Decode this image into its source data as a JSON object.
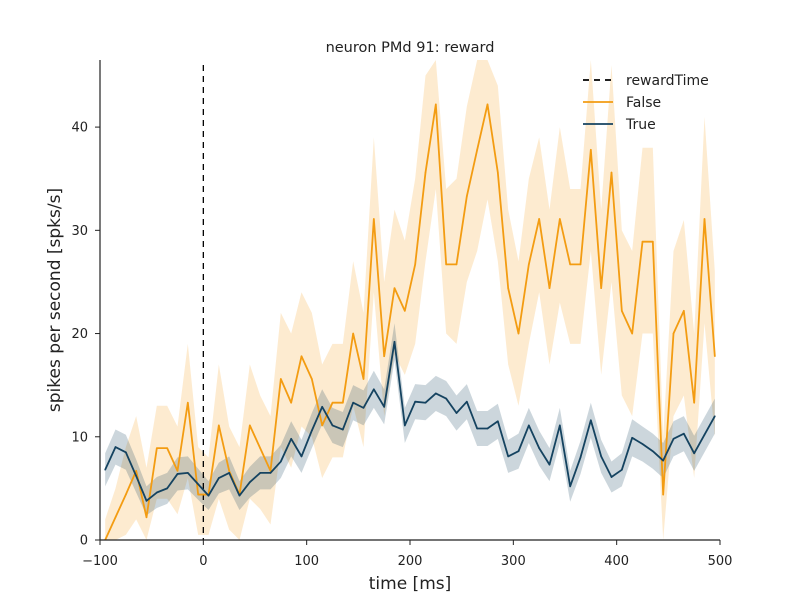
{
  "chart_data": {
    "type": "line",
    "title": "neuron PMd 91: reward",
    "xlabel": "time [ms]",
    "ylabel": "spikes per second [spks/s]",
    "xlim": [
      -100,
      500
    ],
    "ylim": [
      0,
      46.5
    ],
    "xticks": [
      -100,
      0,
      100,
      200,
      300,
      400,
      500
    ],
    "yticks": [
      0,
      10,
      20,
      30,
      40
    ],
    "grid": false,
    "legend_position": "top-right",
    "x": [
      -95,
      -85,
      -75,
      -65,
      -55,
      -45,
      -35,
      -25,
      -15,
      -5,
      5,
      15,
      25,
      35,
      45,
      55,
      65,
      75,
      85,
      95,
      105,
      115,
      125,
      135,
      145,
      155,
      165,
      175,
      185,
      195,
      205,
      215,
      225,
      235,
      245,
      255,
      265,
      275,
      285,
      295,
      305,
      315,
      325,
      335,
      345,
      355,
      365,
      375,
      385,
      395,
      405,
      415,
      425,
      435,
      445,
      455,
      465,
      475,
      485,
      495
    ],
    "series": [
      {
        "name": "False",
        "color": "#f39c12",
        "values": [
          0,
          2.2,
          4.4,
          6.7,
          2.2,
          8.9,
          8.9,
          6.7,
          13.3,
          4.4,
          4.4,
          11.1,
          6.7,
          4.4,
          11.1,
          8.9,
          6.7,
          15.6,
          13.3,
          17.8,
          15.6,
          11.1,
          13.3,
          13.3,
          20.0,
          15.6,
          31.1,
          17.8,
          24.4,
          22.2,
          26.7,
          35.6,
          42.2,
          26.7,
          26.7,
          33.3,
          37.8,
          42.2,
          35.6,
          24.4,
          20.0,
          26.7,
          31.1,
          24.4,
          31.1,
          26.7,
          26.7,
          37.8,
          24.4,
          35.6,
          22.2,
          20.0,
          28.9,
          28.9,
          4.4,
          20.0,
          22.2,
          13.3,
          31.1,
          17.8
        ],
        "lower": [
          0,
          0,
          0.5,
          2,
          0,
          4,
          4,
          2.5,
          6,
          0.5,
          0.5,
          4,
          1,
          0,
          4,
          3,
          1.5,
          9,
          7,
          11,
          10,
          6,
          8,
          8,
          13,
          9,
          24,
          12,
          18,
          16,
          19,
          27,
          34,
          20,
          19,
          25,
          28,
          33,
          27,
          17,
          13,
          19,
          24,
          17,
          23,
          19,
          19,
          28,
          16,
          25,
          14,
          12,
          20,
          20,
          0,
          12,
          14,
          6,
          21,
          10
        ],
        "upper": [
          2,
          5,
          9,
          12,
          7,
          13,
          13,
          11,
          19,
          9,
          8,
          17,
          11,
          9,
          17,
          14,
          12,
          22,
          20,
          24,
          22,
          17,
          19,
          19,
          27,
          22,
          39,
          25,
          32,
          29,
          35,
          45,
          51,
          34,
          35,
          42,
          48,
          51,
          44,
          32,
          27,
          35,
          39,
          32,
          40,
          34,
          34,
          48,
          32,
          46,
          30,
          28,
          38,
          38,
          10,
          28,
          31,
          20,
          41,
          26
        ]
      },
      {
        "name": "True",
        "color": "#154360",
        "values": [
          6.8,
          9.0,
          8.5,
          6.2,
          3.8,
          4.6,
          5.0,
          6.4,
          6.5,
          5.4,
          4.3,
          6.0,
          6.5,
          4.3,
          5.6,
          6.5,
          6.5,
          7.6,
          9.8,
          8.1,
          10.6,
          12.9,
          11.1,
          10.7,
          13.3,
          12.8,
          14.6,
          12.9,
          19.2,
          11.1,
          13.4,
          13.3,
          14.2,
          13.7,
          12.3,
          13.4,
          10.8,
          10.8,
          11.5,
          8.1,
          8.6,
          11.1,
          8.9,
          7.3,
          11.1,
          5.2,
          8.0,
          11.6,
          8.1,
          6.1,
          6.8,
          9.9,
          9.3,
          8.6,
          7.7,
          9.8,
          10.3,
          8.4,
          10.2,
          12.0
        ],
        "lower": [
          5.2,
          7.3,
          6.8,
          4.6,
          2.4,
          3.1,
          3.5,
          4.8,
          4.9,
          3.9,
          2.9,
          4.5,
          4.9,
          2.9,
          4.1,
          4.9,
          4.9,
          6.0,
          8.1,
          6.5,
          8.9,
          11.2,
          9.4,
          9.0,
          11.6,
          11.1,
          12.8,
          11.2,
          17.4,
          9.4,
          11.7,
          11.6,
          12.5,
          12.0,
          10.6,
          11.7,
          9.1,
          9.1,
          9.8,
          6.5,
          6.9,
          9.4,
          7.2,
          5.7,
          9.4,
          3.7,
          6.4,
          9.9,
          6.5,
          4.6,
          5.2,
          8.1,
          7.6,
          6.9,
          6.0,
          8.1,
          8.6,
          6.7,
          8.5,
          10.3
        ],
        "upper": [
          8.4,
          10.7,
          10.2,
          7.8,
          5.2,
          6.1,
          6.5,
          8.0,
          8.1,
          6.9,
          5.7,
          7.5,
          8.1,
          5.7,
          7.1,
          8.1,
          8.1,
          9.2,
          11.5,
          9.7,
          12.3,
          14.6,
          12.8,
          12.4,
          15.0,
          14.5,
          16.4,
          14.6,
          21.0,
          12.8,
          15.1,
          15.0,
          15.9,
          15.4,
          14.0,
          15.1,
          12.5,
          12.5,
          13.2,
          9.7,
          10.3,
          12.8,
          10.6,
          8.9,
          12.8,
          6.7,
          9.6,
          13.3,
          9.7,
          7.6,
          8.4,
          11.7,
          11.0,
          10.3,
          9.4,
          11.5,
          12.0,
          10.1,
          11.9,
          13.7
        ]
      }
    ],
    "reference_line": {
      "name": "rewardTime",
      "x": 0,
      "style": "dashed",
      "color": "#000000"
    },
    "legend": [
      {
        "label": "rewardTime",
        "style": "dashed",
        "color": "#000000"
      },
      {
        "label": "False",
        "style": "solid",
        "color": "#f39c12"
      },
      {
        "label": "True",
        "style": "solid",
        "color": "#154360"
      }
    ]
  }
}
